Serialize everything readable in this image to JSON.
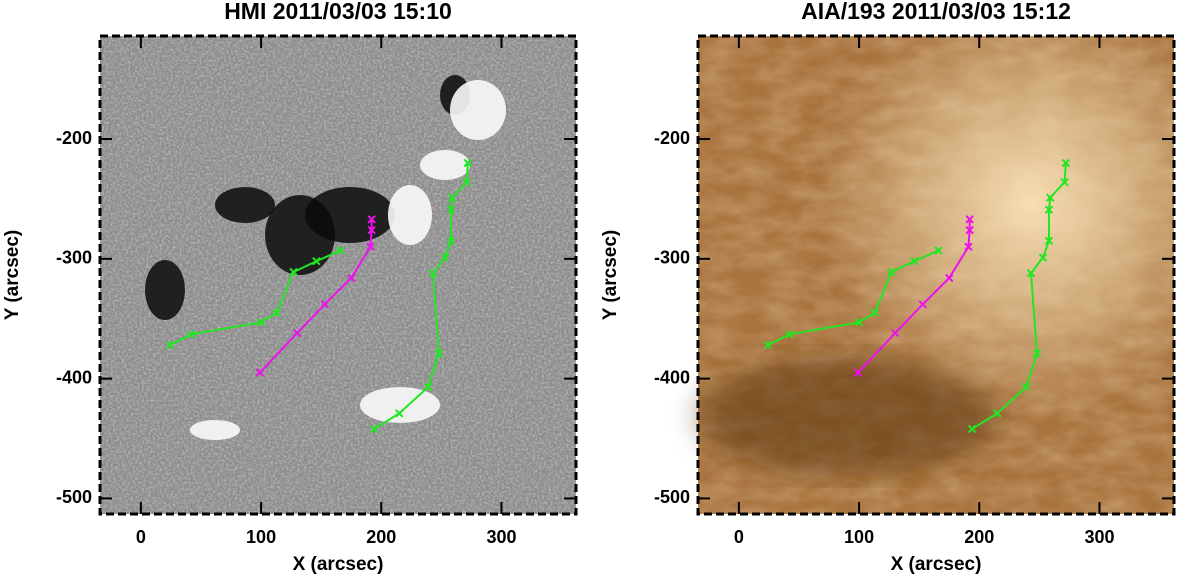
{
  "chart_data": [
    {
      "type": "line",
      "title": "HMI 2011/03/03 15:10",
      "xlabel": "X (arcsec)",
      "ylabel": "Y (arcsec)",
      "xlim": [
        -34,
        362
      ],
      "ylim": [
        -513,
        -114
      ],
      "xticks": [
        0,
        100,
        200,
        300
      ],
      "yticks": [
        -500,
        -400,
        -300,
        -200
      ],
      "background": "magnetogram",
      "series": [
        {
          "color": "#22e622",
          "x": [
            24,
            42,
            100,
            113,
            127,
            146,
            166
          ],
          "values": [
            -372,
            -363,
            -353,
            -345,
            -311,
            -302,
            -293
          ]
        },
        {
          "color": "#ee11ee",
          "x": [
            99,
            130,
            153,
            175,
            191,
            192,
            192
          ],
          "values": [
            -395,
            -362,
            -338,
            -316,
            -290,
            -276,
            -267
          ]
        },
        {
          "color": "#22e622",
          "x": [
            194,
            215,
            239,
            248,
            243,
            253,
            258,
            258,
            259,
            271,
            272
          ],
          "values": [
            -442,
            -429,
            -407,
            -379,
            -312,
            -299,
            -285,
            -259,
            -249,
            -236,
            -220
          ]
        }
      ]
    },
    {
      "type": "line",
      "title": "AIA/193 2011/03/03 15:12",
      "xlabel": "X (arcsec)",
      "ylabel": "Y (arcsec)",
      "xlim": [
        -34,
        362
      ],
      "ylim": [
        -513,
        -114
      ],
      "xticks": [
        0,
        100,
        200,
        300
      ],
      "yticks": [
        -500,
        -400,
        -300,
        -200
      ],
      "background": "euv",
      "series": [
        {
          "color": "#22e622",
          "x": [
            24,
            42,
            100,
            113,
            127,
            146,
            166
          ],
          "values": [
            -372,
            -363,
            -353,
            -345,
            -311,
            -302,
            -293
          ]
        },
        {
          "color": "#ee11ee",
          "x": [
            99,
            130,
            153,
            175,
            191,
            192,
            192
          ],
          "values": [
            -395,
            -362,
            -338,
            -316,
            -290,
            -276,
            -267
          ]
        },
        {
          "color": "#22e622",
          "x": [
            194,
            215,
            239,
            248,
            243,
            253,
            258,
            258,
            259,
            271,
            272
          ],
          "values": [
            -442,
            -429,
            -407,
            -379,
            -312,
            -299,
            -285,
            -259,
            -249,
            -236,
            -220
          ]
        }
      ]
    }
  ]
}
